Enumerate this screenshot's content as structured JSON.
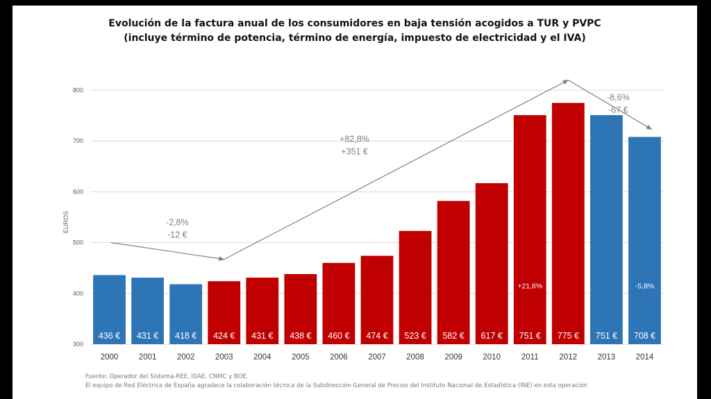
{
  "chart_data": {
    "type": "bar",
    "title": "Evolución de la factura anual de los consumidores en baja tensión acogidos a TUR y PVPC",
    "subtitle": "(incluye término de potencia, término de energía, impuesto de electricidad y el IVA)",
    "xlabel": "",
    "ylabel": "EUROS",
    "ylim": [
      300,
      800
    ],
    "yticks": [
      300,
      400,
      500,
      600,
      700,
      800
    ],
    "ytick_labels": [
      "300",
      "400",
      "500",
      "600",
      "700",
      "800"
    ],
    "grid": true,
    "categories": [
      "2000",
      "2001",
      "2002",
      "2003",
      "2004",
      "2005",
      "2006",
      "2007",
      "2008",
      "2009",
      "2010",
      "2011",
      "2012",
      "2013",
      "2014"
    ],
    "values": [
      436,
      431,
      418,
      424,
      431,
      438,
      460,
      474,
      523,
      582,
      617,
      751,
      775,
      751,
      708
    ],
    "value_labels": [
      "436 €",
      "431 €",
      "418 €",
      "424 €",
      "431 €",
      "438 €",
      "460 €",
      "474 €",
      "523 €",
      "582 €",
      "617 €",
      "751 €",
      "775 €",
      "751 €",
      "708 €"
    ],
    "bar_groups": [
      "blue",
      "blue",
      "blue",
      "red",
      "red",
      "red",
      "red",
      "red",
      "red",
      "red",
      "red",
      "red",
      "red",
      "blue",
      "blue"
    ],
    "colors": {
      "blue": "#2e75b6",
      "red": "#c00000",
      "grid": "#d9d9d9",
      "arrow": "#808080",
      "annotation": "#7f7f7f"
    },
    "bar_annotations": [
      {
        "category": "2011",
        "text": "+21,6%"
      },
      {
        "category": "2014",
        "text": "-5,8%"
      }
    ],
    "trend_annotations": [
      {
        "from": "2000",
        "from_value": 500,
        "to": "2003",
        "to_value": 467,
        "label_top": "-2,8%",
        "label_bottom": "-12 €"
      },
      {
        "from": "2003",
        "from_value": 467,
        "to": "2012",
        "to_value": 820,
        "label_top": "+82,8%",
        "label_bottom": "+351 €"
      },
      {
        "from": "2012",
        "from_value": 820,
        "to": "2014",
        "to_value": 723,
        "label_top": "-8,6%",
        "label_bottom": "-67 €"
      }
    ]
  },
  "footer": {
    "source": "Fuente: Operador del Sistema-REE, IDAE, CNMC y BOE.",
    "thanks": "El equipo de Red Eléctrica de España agradece la colaboración técnica de la Subdirección General de Precios del Instituto Nacional de Estadística (INE) en esta operación"
  }
}
